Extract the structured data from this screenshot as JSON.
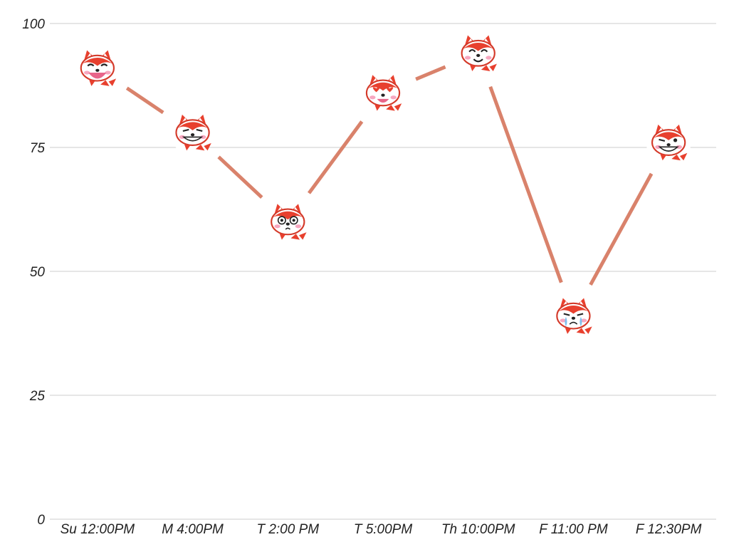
{
  "chart_data": {
    "type": "line",
    "categories": [
      "Su 12:00PM",
      "M 4:00PM",
      "T 2:00 PM",
      "T 5:00PM",
      "Th 10:00PM",
      "F 11:00 PM",
      "F 12:30PM"
    ],
    "series": [
      {
        "values": [
          91,
          78,
          60,
          86,
          94,
          41,
          76
        ],
        "color": "#d9826b",
        "markers": [
          "laughing-fox-icon",
          "grinning-fox-icon",
          "surprised-fox-icon",
          "heart-eyes-fox-icon",
          "happy-fox-icon",
          "crying-fox-icon",
          "winking-fox-icon"
        ]
      }
    ],
    "yticks": [
      "0",
      "25",
      "50",
      "75",
      "100"
    ],
    "ylim": [
      0,
      100
    ],
    "grid": true,
    "legend": "none",
    "colors": {
      "fox": "#e8402e",
      "face": "#ffffff",
      "cheek": "#f7a7c0",
      "tear": "#7fc0ef"
    }
  }
}
